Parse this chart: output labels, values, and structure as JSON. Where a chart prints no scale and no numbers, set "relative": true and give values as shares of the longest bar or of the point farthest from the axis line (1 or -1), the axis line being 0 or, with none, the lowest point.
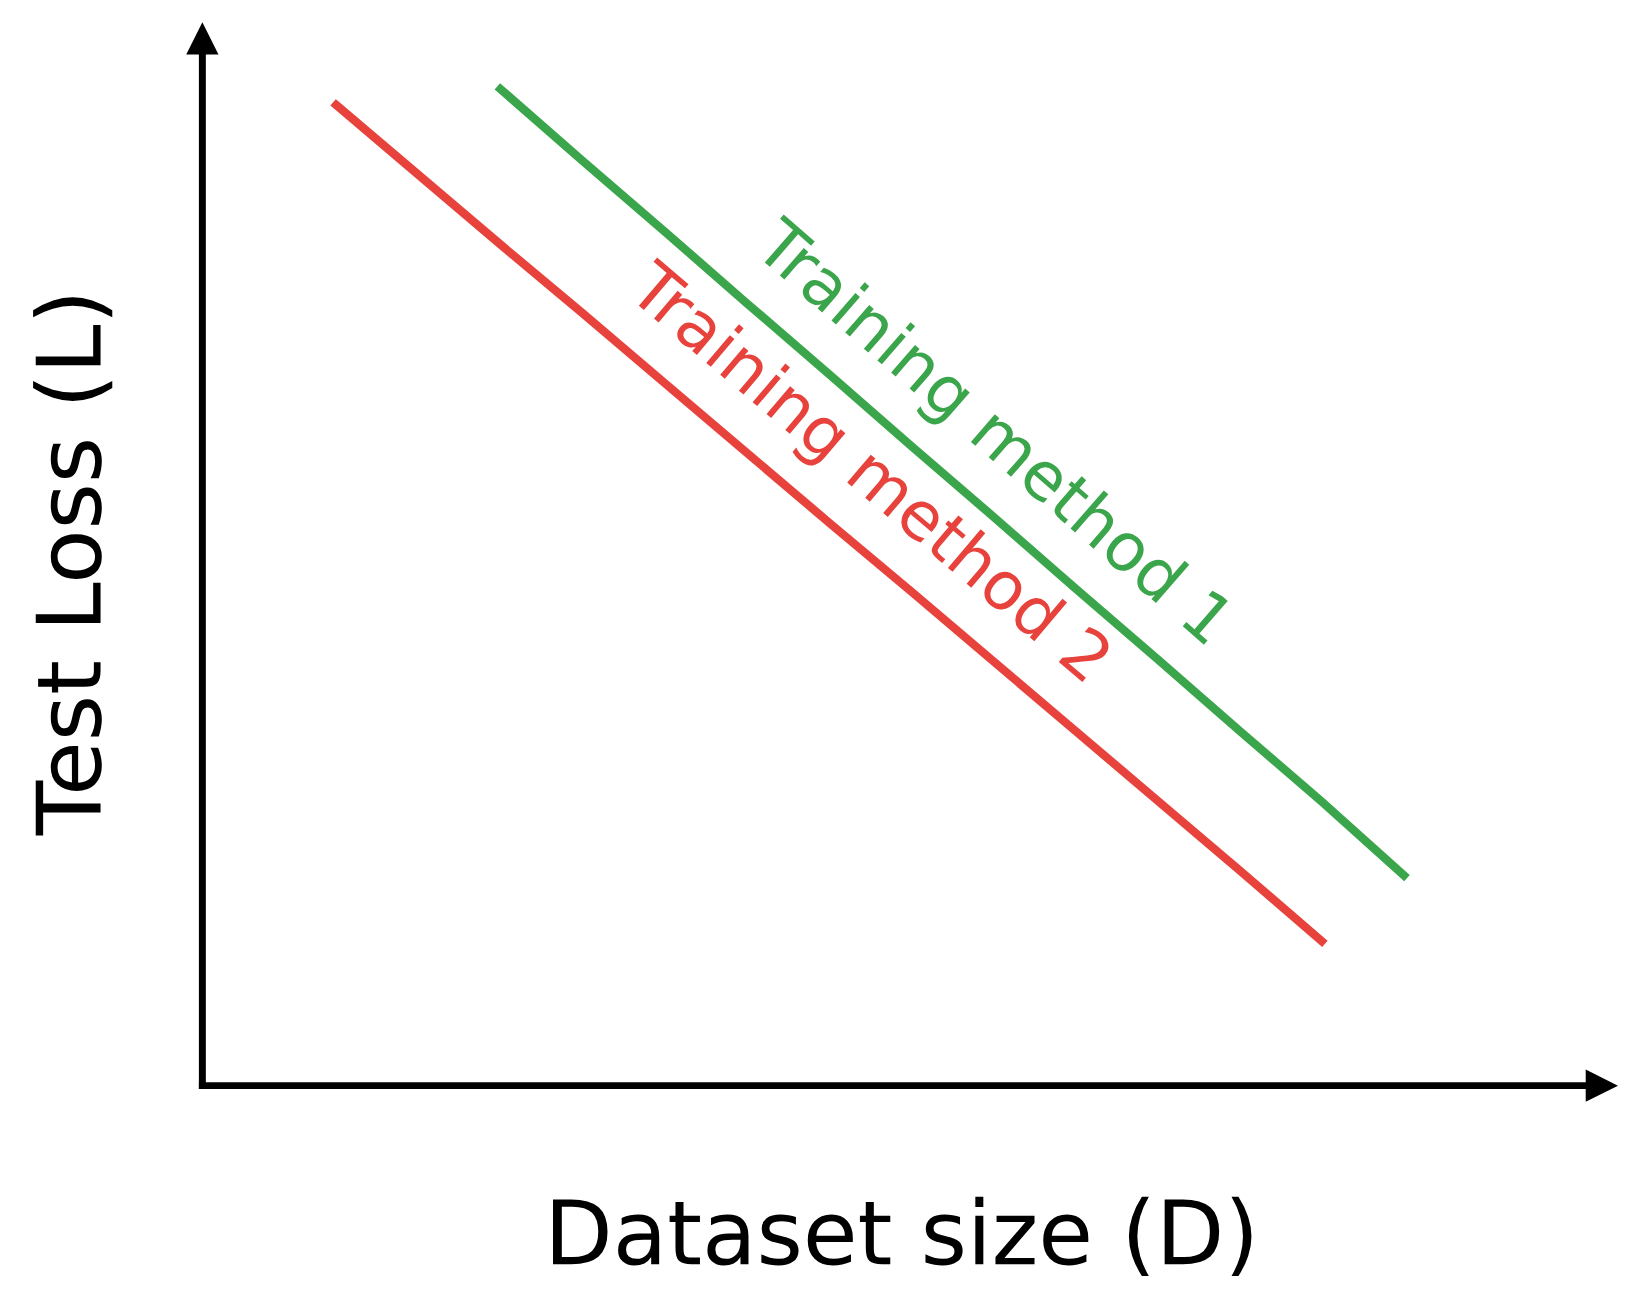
{
  "chart_data": {
    "type": "line",
    "relative": true,
    "xlabel": "Dataset size (D)",
    "ylabel": "Test Loss (L)",
    "legend": false,
    "marker": "none",
    "line_style": "solid",
    "categories": [
      null,
      null,
      null,
      null,
      null,
      null,
      null,
      null,
      null,
      null,
      null,
      null,
      null,
      null,
      null,
      null,
      null
    ],
    "series": [
      {
        "name": "Training method 1",
        "color": "#3aa54a",
        "values": [
          null,
          null,
          null,
          1.0,
          0.928,
          0.857,
          0.785,
          0.714,
          0.642,
          0.571,
          0.499,
          0.428,
          0.356,
          0.285,
          0.211,
          null,
          null
        ]
      },
      {
        "name": "Training method 2",
        "color": "#e8423c",
        "values": [
          null,
          0.984,
          0.914,
          0.844,
          0.775,
          0.705,
          0.635,
          0.565,
          0.496,
          0.426,
          0.356,
          0.286,
          0.216,
          0.145,
          null,
          null,
          null
        ]
      }
    ]
  }
}
